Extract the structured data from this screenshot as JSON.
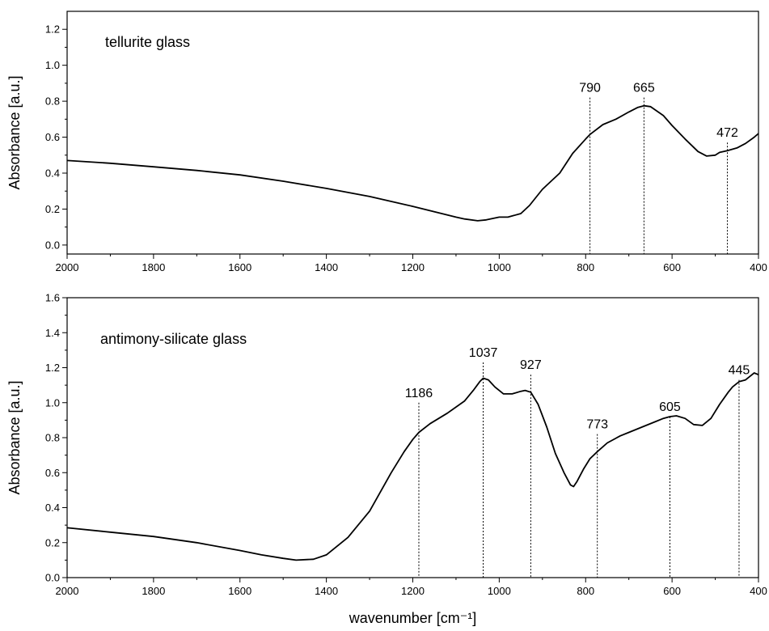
{
  "chart_data": [
    {
      "type": "line",
      "annotation": "tellurite glass",
      "ylabel": "Absorbance [a.u.]",
      "xlabel": "",
      "xlim": [
        2000,
        400
      ],
      "ylim": [
        -0.05,
        1.3
      ],
      "xticks": [
        2000,
        1800,
        1600,
        1400,
        1200,
        1000,
        800,
        600,
        400
      ],
      "yticks": [
        0.0,
        0.2,
        0.4,
        0.6,
        0.8,
        1.0,
        1.2
      ],
      "ytick_labels": [
        "0.0",
        "0.2",
        "0.4",
        "0.6",
        "0.8",
        "1.0",
        "1.2"
      ],
      "x": [
        2000,
        1900,
        1800,
        1700,
        1600,
        1500,
        1400,
        1300,
        1200,
        1150,
        1100,
        1080,
        1050,
        1030,
        1000,
        980,
        950,
        930,
        900,
        860,
        830,
        800,
        790,
        760,
        730,
        700,
        680,
        665,
        650,
        620,
        600,
        570,
        540,
        520,
        500,
        490,
        472,
        450,
        430,
        410,
        400
      ],
      "y": [
        0.47,
        0.455,
        0.435,
        0.415,
        0.39,
        0.355,
        0.315,
        0.27,
        0.215,
        0.185,
        0.155,
        0.145,
        0.135,
        0.14,
        0.155,
        0.155,
        0.175,
        0.22,
        0.31,
        0.4,
        0.51,
        0.59,
        0.615,
        0.67,
        0.7,
        0.74,
        0.765,
        0.775,
        0.77,
        0.72,
        0.665,
        0.59,
        0.52,
        0.495,
        0.5,
        0.515,
        0.525,
        0.54,
        0.565,
        0.6,
        0.62
      ],
      "peaks": [
        {
          "position": 790,
          "label": "790",
          "top": 0.82
        },
        {
          "position": 665,
          "label": "665",
          "top": 0.82
        },
        {
          "position": 472,
          "label": "472",
          "top": 0.57
        }
      ]
    },
    {
      "type": "line",
      "annotation": "antimony-silicate glass",
      "ylabel": "Absorbance [a.u.]",
      "xlabel": "wavenumber [cm⁻¹]",
      "xlim": [
        2000,
        400
      ],
      "ylim": [
        0.0,
        1.6
      ],
      "xticks": [
        2000,
        1800,
        1600,
        1400,
        1200,
        1000,
        800,
        600,
        400
      ],
      "yticks": [
        0.0,
        0.2,
        0.4,
        0.6,
        0.8,
        1.0,
        1.2,
        1.4,
        1.6
      ],
      "ytick_labels": [
        "0.0",
        "0.2",
        "0.4",
        "0.6",
        "0.8",
        "1.0",
        "1.2",
        "1.4",
        "1.6"
      ],
      "x": [
        2000,
        1900,
        1800,
        1700,
        1600,
        1550,
        1500,
        1470,
        1430,
        1400,
        1350,
        1300,
        1250,
        1220,
        1200,
        1186,
        1160,
        1120,
        1080,
        1060,
        1045,
        1037,
        1025,
        1010,
        990,
        970,
        950,
        940,
        927,
        910,
        890,
        870,
        850,
        835,
        828,
        820,
        805,
        790,
        773,
        750,
        720,
        700,
        670,
        640,
        620,
        605,
        590,
        570,
        550,
        530,
        510,
        490,
        470,
        460,
        445,
        430,
        420,
        410,
        400
      ],
      "y": [
        0.285,
        0.26,
        0.235,
        0.2,
        0.155,
        0.13,
        0.11,
        0.1,
        0.105,
        0.13,
        0.23,
        0.38,
        0.6,
        0.72,
        0.79,
        0.83,
        0.88,
        0.94,
        1.01,
        1.07,
        1.12,
        1.14,
        1.13,
        1.09,
        1.05,
        1.05,
        1.065,
        1.07,
        1.06,
        0.99,
        0.86,
        0.71,
        0.6,
        0.53,
        0.52,
        0.55,
        0.62,
        0.68,
        0.72,
        0.77,
        0.81,
        0.83,
        0.86,
        0.89,
        0.91,
        0.92,
        0.925,
        0.91,
        0.875,
        0.87,
        0.91,
        0.99,
        1.06,
        1.09,
        1.12,
        1.13,
        1.15,
        1.17,
        1.16
      ],
      "peaks": [
        {
          "position": 1186,
          "label": "1186",
          "top": 1.0
        },
        {
          "position": 1037,
          "label": "1037",
          "top": 1.23
        },
        {
          "position": 927,
          "label": "927",
          "top": 1.16
        },
        {
          "position": 773,
          "label": "773",
          "top": 0.82
        },
        {
          "position": 605,
          "label": "605",
          "top": 0.92
        },
        {
          "position": 445,
          "label": "445",
          "top": 1.13
        }
      ]
    }
  ]
}
